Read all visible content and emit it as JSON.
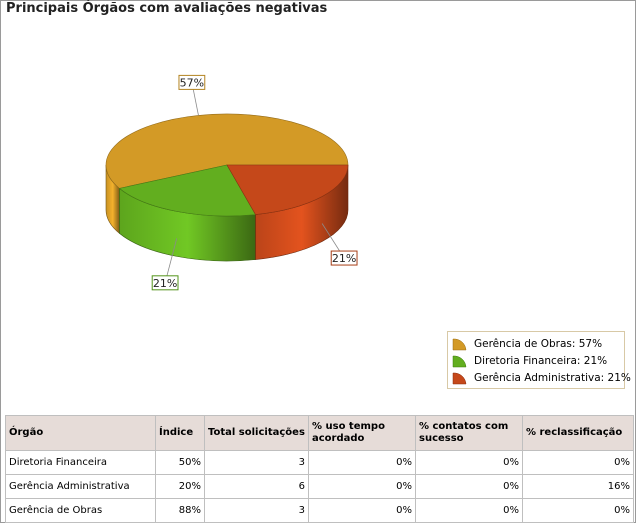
{
  "title": "Principais Órgãos com avaliações negativas",
  "chart_data": {
    "type": "pie",
    "labels": [
      "Gerência de Obras",
      "Diretoria Financeira",
      "Gerência Administrativa"
    ],
    "values": [
      57,
      21,
      21
    ],
    "data_labels": [
      "57%",
      "21%",
      "21%"
    ],
    "colors": [
      "#d39a26",
      "#62ae1f",
      "#c5481a"
    ],
    "legend_entries": [
      "Gerência de Obras: 57%",
      "Diretoria Financeira: 21%",
      "Gerência Administrativa: 21%"
    ],
    "legend_position": "bottom-right"
  },
  "table": {
    "headers": [
      "Órgão",
      "Índice",
      "Total solicitações",
      "% uso tempo acordado",
      "% contatos com sucesso",
      "% reclassificação"
    ],
    "rows": [
      [
        "Diretoria Financeira",
        "50%",
        "3",
        "0%",
        "0%",
        "0%"
      ],
      [
        "Gerência Administrativa",
        "20%",
        "6",
        "0%",
        "0%",
        "16%"
      ],
      [
        "Gerência de Obras",
        "88%",
        "3",
        "0%",
        "0%",
        "0%"
      ]
    ]
  }
}
